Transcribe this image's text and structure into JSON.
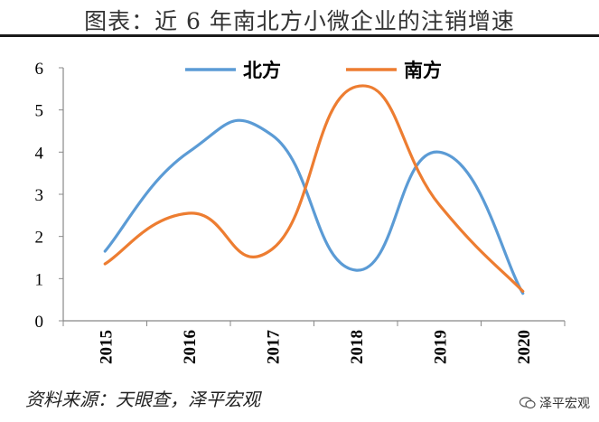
{
  "title": "图表：近 6 年南北方小微企业的注销增速",
  "source": "资料来源：天眼查，泽平宏观",
  "watermark": "泽平宏观",
  "chart_data": {
    "type": "line",
    "title": "图表：近 6 年南北方小微企业的注销增速",
    "categories": [
      "2015",
      "2016",
      "2017",
      "2018",
      "2019",
      "2020"
    ],
    "series": [
      {
        "name": "北方",
        "color": "#5B9BD5",
        "values": [
          1.65,
          4.0,
          4.4,
          1.2,
          4.0,
          0.65
        ]
      },
      {
        "name": "南方",
        "color": "#ED7D31",
        "values": [
          1.35,
          2.55,
          1.7,
          5.55,
          2.75,
          0.7
        ]
      }
    ],
    "yticks": [
      "0",
      "1",
      "2",
      "3",
      "4",
      "5",
      "6"
    ],
    "ylim": [
      0,
      6
    ],
    "xlabel": "",
    "ylabel": "",
    "legend": "top",
    "grid": false
  }
}
